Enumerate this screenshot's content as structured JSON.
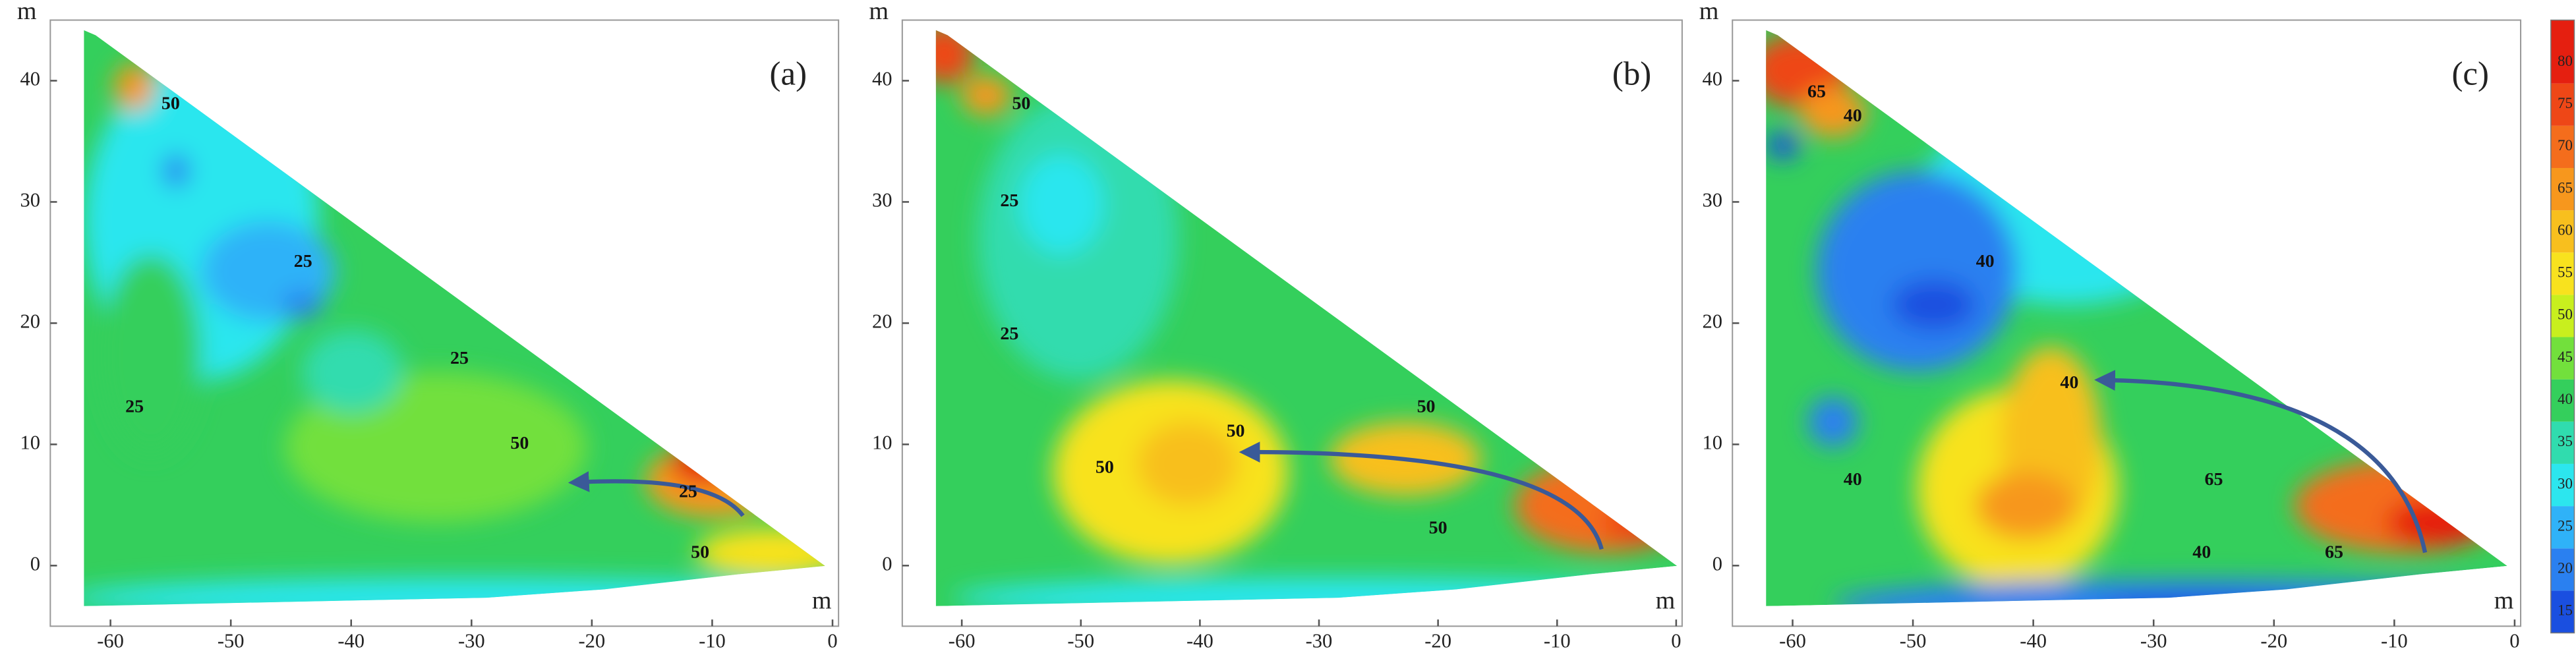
{
  "chart_data": [
    {
      "type": "contour",
      "panel_label": "(a)",
      "x_label": "m",
      "y_label": "m",
      "xlim": [
        -65,
        0.5
      ],
      "ylim": [
        -5,
        45
      ],
      "xticks": [
        -60,
        -50,
        -40,
        -30,
        -20,
        -10,
        0
      ],
      "yticks": [
        0,
        10,
        20,
        30,
        40
      ],
      "contour_labels": [
        {
          "value": 50,
          "x": -55,
          "y": 38
        },
        {
          "value": 25,
          "x": -44,
          "y": 25
        },
        {
          "value": 25,
          "x": -31,
          "y": 17
        },
        {
          "value": 25,
          "x": -58,
          "y": 13
        },
        {
          "value": 50,
          "x": -26,
          "y": 10
        },
        {
          "value": 25,
          "x": -12,
          "y": 6
        },
        {
          "value": 50,
          "x": -11,
          "y": 1
        }
      ]
    },
    {
      "type": "contour",
      "panel_label": "(b)",
      "x_label": "m",
      "y_label": "m",
      "xlim": [
        -65,
        0.5
      ],
      "ylim": [
        -5,
        45
      ],
      "xticks": [
        -60,
        -50,
        -40,
        -30,
        -20,
        -10,
        0
      ],
      "yticks": [
        0,
        10,
        20,
        30,
        40
      ],
      "contour_labels": [
        {
          "value": 50,
          "x": -55,
          "y": 38
        },
        {
          "value": 25,
          "x": -56,
          "y": 30
        },
        {
          "value": 25,
          "x": -56,
          "y": 19
        },
        {
          "value": 50,
          "x": -48,
          "y": 8
        },
        {
          "value": 50,
          "x": -37,
          "y": 11
        },
        {
          "value": 50,
          "x": -21,
          "y": 13
        },
        {
          "value": 50,
          "x": -20,
          "y": 3
        }
      ]
    },
    {
      "type": "contour",
      "panel_label": "(c)",
      "x_label": "m",
      "y_label": "m",
      "xlim": [
        -65,
        0.5
      ],
      "ylim": [
        -5,
        45
      ],
      "xticks": [
        -60,
        -50,
        -40,
        -30,
        -20,
        -10,
        0
      ],
      "yticks": [
        0,
        10,
        20,
        30,
        40
      ],
      "contour_labels": [
        {
          "value": 65,
          "x": -58,
          "y": 39
        },
        {
          "value": 40,
          "x": -55,
          "y": 37
        },
        {
          "value": 40,
          "x": -44,
          "y": 25
        },
        {
          "value": 40,
          "x": -37,
          "y": 15
        },
        {
          "value": 40,
          "x": -55,
          "y": 7
        },
        {
          "value": 65,
          "x": -25,
          "y": 7
        },
        {
          "value": 40,
          "x": -26,
          "y": 1
        },
        {
          "value": 65,
          "x": -15,
          "y": 1
        }
      ]
    },
    {
      "type": "colorbar",
      "ylim": [
        12.5,
        85
      ],
      "yticks": [
        15,
        20,
        25,
        30,
        35,
        40,
        45,
        50,
        55,
        60,
        65,
        70,
        75,
        80
      ],
      "colors": [
        "#1a4fe0",
        "#2a80f0",
        "#2fb2f8",
        "#2ce6ee",
        "#30dcae",
        "#34cf5c",
        "#72e03c",
        "#c8ef1e",
        "#f8e21e",
        "#f8bf1e",
        "#f7971d",
        "#f46d1c",
        "#ee4717",
        "#e51f10"
      ]
    }
  ]
}
